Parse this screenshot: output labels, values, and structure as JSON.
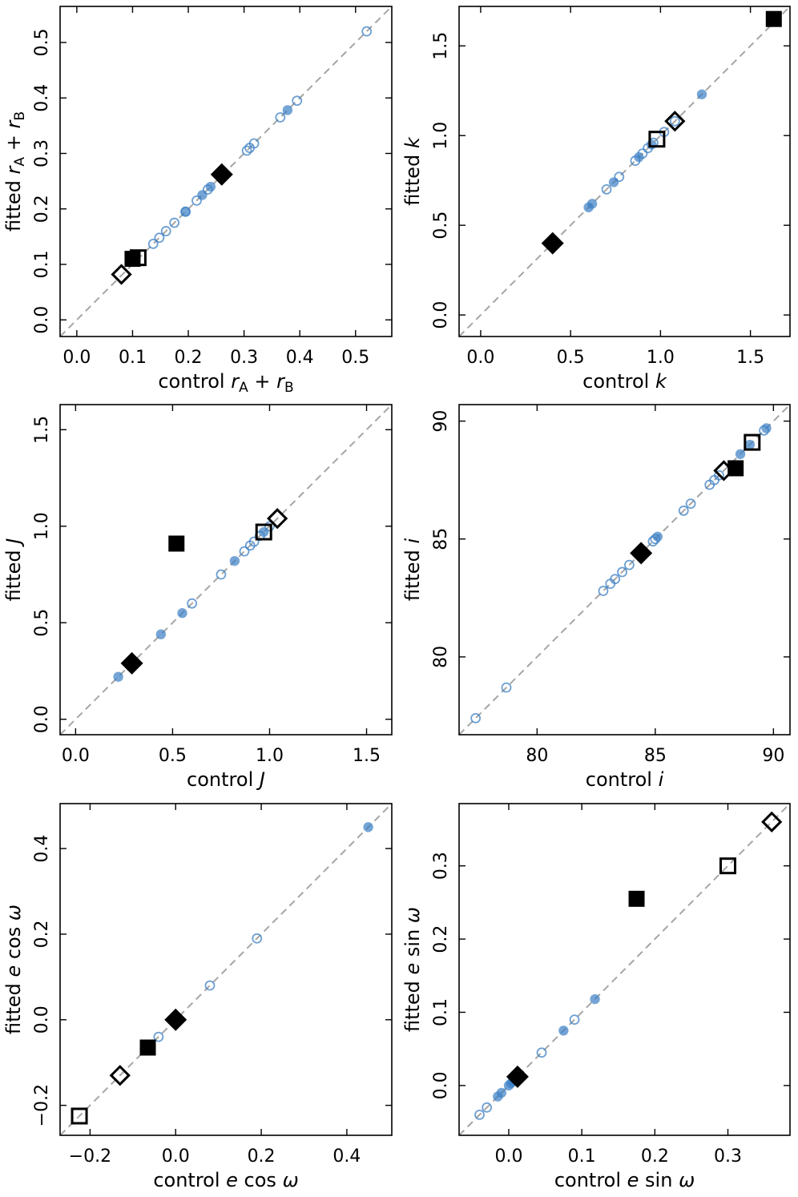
{
  "colors": {
    "points": "#3b7fc4",
    "diagonal": "#a6a6a6",
    "special": "#000000"
  },
  "chart_data": [
    {
      "type": "scatter",
      "title": "",
      "xlabel": "control r_A + r_B",
      "ylabel": "fitted r_A + r_B",
      "xlim": [
        -0.03,
        0.565
      ],
      "ylim": [
        -0.03,
        0.565
      ],
      "xticks": [
        0.0,
        0.1,
        0.2,
        0.3,
        0.4,
        0.5
      ],
      "xtick_labels": [
        "0.0",
        "0.1",
        "0.2",
        "0.3",
        "0.4",
        "0.5"
      ],
      "yticks": [
        0.0,
        0.1,
        0.2,
        0.3,
        0.4,
        0.5
      ],
      "ytick_labels": [
        "0.0",
        "0.1",
        "0.2",
        "0.3",
        "0.4",
        "0.5"
      ],
      "open_circles": [
        [
          0.137,
          0.137
        ],
        [
          0.148,
          0.148
        ],
        [
          0.16,
          0.16
        ],
        [
          0.175,
          0.175
        ],
        [
          0.195,
          0.195
        ],
        [
          0.215,
          0.215
        ],
        [
          0.235,
          0.235
        ],
        [
          0.305,
          0.305
        ],
        [
          0.31,
          0.31
        ],
        [
          0.318,
          0.318
        ],
        [
          0.365,
          0.365
        ],
        [
          0.395,
          0.395
        ],
        [
          0.52,
          0.52
        ]
      ],
      "filled_circles": [
        [
          0.195,
          0.195
        ],
        [
          0.225,
          0.225
        ],
        [
          0.24,
          0.24
        ],
        [
          0.378,
          0.378
        ]
      ],
      "filled_squares": [
        [
          0.1,
          0.11
        ]
      ],
      "open_squares": [
        [
          0.11,
          0.112
        ]
      ],
      "filled_diamonds": [
        [
          0.26,
          0.262
        ]
      ],
      "open_diamonds": [
        [
          0.08,
          0.082
        ]
      ]
    },
    {
      "type": "scatter",
      "title": "",
      "xlabel": "control k",
      "ylabel": "fitted k",
      "xlim": [
        -0.12,
        1.72
      ],
      "ylim": [
        -0.12,
        1.72
      ],
      "xticks": [
        0.0,
        0.5,
        1.0,
        1.5
      ],
      "xtick_labels": [
        "0.0",
        "0.5",
        "1.0",
        "1.5"
      ],
      "yticks": [
        0.0,
        0.5,
        1.0,
        1.5
      ],
      "ytick_labels": [
        "0.0",
        "0.5",
        "1.0",
        "1.5"
      ],
      "open_circles": [
        [
          0.7,
          0.7
        ],
        [
          0.77,
          0.77
        ],
        [
          0.86,
          0.86
        ],
        [
          0.9,
          0.9
        ],
        [
          0.93,
          0.93
        ],
        [
          0.96,
          0.96
        ],
        [
          1.02,
          1.02
        ],
        [
          1.08,
          1.08
        ]
      ],
      "filled_circles": [
        [
          0.6,
          0.6
        ],
        [
          0.62,
          0.62
        ],
        [
          0.74,
          0.74
        ],
        [
          0.88,
          0.88
        ],
        [
          0.95,
          0.95
        ],
        [
          1.23,
          1.23
        ]
      ],
      "filled_squares": [
        [
          1.63,
          1.65
        ]
      ],
      "open_squares": [
        [
          0.98,
          0.98
        ]
      ],
      "filled_diamonds": [
        [
          0.4,
          0.4
        ]
      ],
      "open_diamonds": [
        [
          1.08,
          1.08
        ]
      ]
    },
    {
      "type": "scatter",
      "title": "",
      "xlabel": "control J",
      "ylabel": "fitted J",
      "xlim": [
        -0.08,
        1.63
      ],
      "ylim": [
        -0.08,
        1.63
      ],
      "xticks": [
        0.0,
        0.5,
        1.0,
        1.5
      ],
      "xtick_labels": [
        "0.0",
        "0.5",
        "1.0",
        "1.5"
      ],
      "yticks": [
        0.0,
        0.5,
        1.0,
        1.5
      ],
      "ytick_labels": [
        "0.0",
        "0.5",
        "1.0",
        "1.5"
      ],
      "open_circles": [
        [
          0.6,
          0.6
        ],
        [
          0.75,
          0.75
        ],
        [
          0.87,
          0.87
        ],
        [
          0.9,
          0.9
        ],
        [
          0.92,
          0.92
        ],
        [
          0.95,
          0.95
        ],
        [
          1.0,
          1.0
        ]
      ],
      "filled_circles": [
        [
          0.22,
          0.22
        ],
        [
          0.44,
          0.44
        ],
        [
          0.55,
          0.55
        ],
        [
          0.82,
          0.82
        ],
        [
          0.97,
          0.97
        ]
      ],
      "filled_squares": [
        [
          0.52,
          0.91
        ]
      ],
      "open_squares": [
        [
          0.97,
          0.97
        ]
      ],
      "filled_diamonds": [
        [
          0.29,
          0.29
        ]
      ],
      "open_diamonds": [
        [
          1.04,
          1.04
        ]
      ]
    },
    {
      "type": "scatter",
      "title": "",
      "xlabel": "control i",
      "ylabel": "fitted i",
      "xlim": [
        76.7,
        90.7
      ],
      "ylim": [
        76.7,
        90.7
      ],
      "xticks": [
        80,
        85,
        90
      ],
      "xtick_labels": [
        "80",
        "85",
        "90"
      ],
      "yticks": [
        80,
        85,
        90
      ],
      "ytick_labels": [
        "80",
        "85",
        "90"
      ],
      "open_circles": [
        [
          77.4,
          77.4
        ],
        [
          78.7,
          78.7
        ],
        [
          82.8,
          82.8
        ],
        [
          83.1,
          83.1
        ],
        [
          83.3,
          83.3
        ],
        [
          83.6,
          83.6
        ],
        [
          83.9,
          83.9
        ],
        [
          84.9,
          84.9
        ],
        [
          85.0,
          85.0
        ],
        [
          86.2,
          86.2
        ],
        [
          86.5,
          86.5
        ],
        [
          87.3,
          87.3
        ],
        [
          87.5,
          87.5
        ],
        [
          87.7,
          87.7
        ],
        [
          89.6,
          89.6
        ]
      ],
      "filled_circles": [
        [
          85.1,
          85.1
        ],
        [
          88.6,
          88.6
        ],
        [
          89.0,
          89.0
        ],
        [
          89.7,
          89.7
        ]
      ],
      "filled_squares": [
        [
          88.4,
          88.0
        ]
      ],
      "open_squares": [
        [
          89.1,
          89.1
        ]
      ],
      "filled_diamonds": [
        [
          84.4,
          84.4
        ]
      ],
      "open_diamonds": [
        [
          87.9,
          87.9
        ]
      ]
    },
    {
      "type": "scatter",
      "title": "",
      "xlabel": "control e cos ω",
      "ylabel": "fitted e cos ω",
      "xlim": [
        -0.27,
        0.505
      ],
      "ylim": [
        -0.27,
        0.505
      ],
      "xticks": [
        -0.2,
        0.0,
        0.2,
        0.4
      ],
      "xtick_labels": [
        "−0.2",
        "0.0",
        "0.2",
        "0.4"
      ],
      "yticks": [
        -0.2,
        0.0,
        0.2,
        0.4
      ],
      "ytick_labels": [
        "−0.2",
        "0.0",
        "0.2",
        "0.4"
      ],
      "open_circles": [
        [
          -0.07,
          -0.07
        ],
        [
          -0.04,
          -0.04
        ],
        [
          0.08,
          0.08
        ],
        [
          0.19,
          0.19
        ]
      ],
      "filled_circles": [
        [
          -0.005,
          -0.005
        ],
        [
          0.45,
          0.45
        ]
      ],
      "filled_squares": [
        [
          -0.065,
          -0.065
        ]
      ],
      "open_squares": [
        [
          -0.225,
          -0.225
        ]
      ],
      "filled_diamonds": [
        [
          0.0,
          0.0
        ]
      ],
      "open_diamonds": [
        [
          -0.13,
          -0.13
        ]
      ]
    },
    {
      "type": "scatter",
      "title": "",
      "xlabel": "control e sin ω",
      "ylabel": "fitted e sin ω",
      "xlim": [
        -0.068,
        0.385
      ],
      "ylim": [
        -0.068,
        0.385
      ],
      "xticks": [
        0.0,
        0.1,
        0.2,
        0.3
      ],
      "xtick_labels": [
        "0.0",
        "0.1",
        "0.2",
        "0.3"
      ],
      "yticks": [
        0.0,
        0.1,
        0.2,
        0.3
      ],
      "ytick_labels": [
        "0.0",
        "0.1",
        "0.2",
        "0.3"
      ],
      "open_circles": [
        [
          -0.04,
          -0.04
        ],
        [
          -0.03,
          -0.03
        ],
        [
          0.045,
          0.045
        ],
        [
          0.09,
          0.09
        ]
      ],
      "filled_circles": [
        [
          -0.015,
          -0.015
        ],
        [
          -0.01,
          -0.01
        ],
        [
          0.0,
          0.0
        ],
        [
          0.003,
          0.003
        ],
        [
          0.006,
          0.006
        ],
        [
          0.075,
          0.075
        ],
        [
          0.118,
          0.118
        ]
      ],
      "filled_squares": [
        [
          0.175,
          0.255
        ]
      ],
      "open_squares": [
        [
          0.3,
          0.3
        ]
      ],
      "filled_diamonds": [
        [
          0.012,
          0.012
        ]
      ],
      "open_diamonds": [
        [
          0.36,
          0.36
        ]
      ]
    }
  ]
}
